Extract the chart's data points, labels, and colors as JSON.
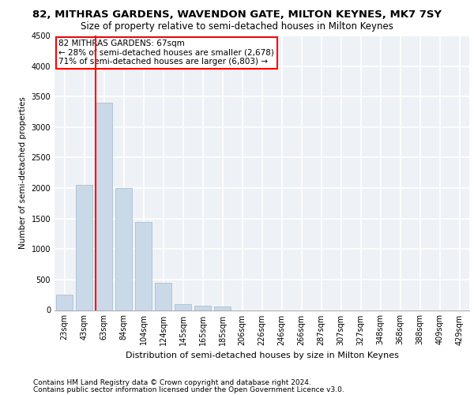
{
  "title1": "82, MITHRAS GARDENS, WAVENDON GATE, MILTON KEYNES, MK7 7SY",
  "title2": "Size of property relative to semi-detached houses in Milton Keynes",
  "xlabel": "Distribution of semi-detached houses by size in Milton Keynes",
  "ylabel": "Number of semi-detached properties",
  "footnote1": "Contains HM Land Registry data © Crown copyright and database right 2024.",
  "footnote2": "Contains public sector information licensed under the Open Government Licence v3.0.",
  "categories": [
    "23sqm",
    "43sqm",
    "63sqm",
    "84sqm",
    "104sqm",
    "124sqm",
    "145sqm",
    "165sqm",
    "185sqm",
    "206sqm",
    "226sqm",
    "246sqm",
    "266sqm",
    "287sqm",
    "307sqm",
    "327sqm",
    "348sqm",
    "368sqm",
    "388sqm",
    "409sqm",
    "429sqm"
  ],
  "values": [
    250,
    2050,
    3400,
    2000,
    1450,
    450,
    100,
    75,
    60,
    0,
    0,
    0,
    0,
    0,
    0,
    0,
    0,
    0,
    0,
    0,
    0
  ],
  "bar_color": "#c9d9e8",
  "bar_edge_color": "#a0b8cc",
  "annotation_title": "82 MITHRAS GARDENS: 67sqm",
  "annotation_line1": "← 28% of semi-detached houses are smaller (2,678)",
  "annotation_line2": "71% of semi-detached houses are larger (6,803) →",
  "annotation_box_color": "white",
  "annotation_box_edge": "red",
  "vline_color": "red",
  "vline_x": 1.575,
  "ylim": [
    0,
    4500
  ],
  "yticks": [
    0,
    500,
    1000,
    1500,
    2000,
    2500,
    3000,
    3500,
    4000,
    4500
  ],
  "background_color": "#eef2f7",
  "grid_color": "white",
  "title1_fontsize": 9.5,
  "title2_fontsize": 8.5,
  "xlabel_fontsize": 8,
  "ylabel_fontsize": 7.5,
  "tick_fontsize": 7,
  "annotation_fontsize": 7.5,
  "footnote_fontsize": 6.5
}
